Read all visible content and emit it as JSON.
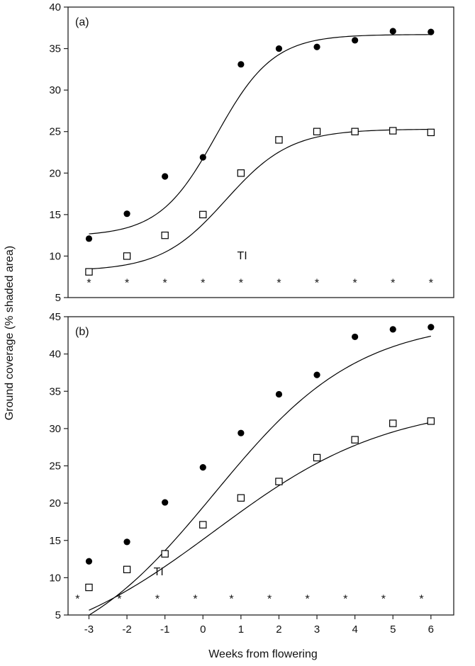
{
  "figure": {
    "ylabel": "Ground coverage (% shaded area)",
    "xlabel": "Weeks from flowering",
    "x_ticks": [
      "-3",
      "-2",
      "-1",
      "0",
      "1",
      "2",
      "3",
      "4",
      "5",
      "6"
    ]
  },
  "chart_data": [
    {
      "type": "scatter",
      "panel_label": "(a)",
      "x": [
        -3,
        -2,
        -1,
        0,
        1,
        2,
        3,
        4,
        5,
        6
      ],
      "xlim": [
        -3.55,
        6.6
      ],
      "ylim": [
        5,
        40
      ],
      "y_ticks": [
        5,
        10,
        15,
        20,
        25,
        30,
        35,
        40
      ],
      "series": [
        {
          "marker": "filled-circle",
          "color": "#000000",
          "values": [
            12.1,
            15.1,
            19.6,
            21.9,
            33.1,
            35.0,
            35.2,
            36.0,
            37.1,
            37.0
          ],
          "fit": {
            "kind": "logistic",
            "lower": 12.4,
            "upper": 36.7,
            "mid": 0.35,
            "scale": 0.75
          }
        },
        {
          "marker": "open-square",
          "color": "#000000",
          "values": [
            8.1,
            10.0,
            12.5,
            15.0,
            20.0,
            24.0,
            25.0,
            25.0,
            25.1,
            24.9
          ],
          "fit": {
            "kind": "logistic",
            "lower": 8.2,
            "upper": 25.3,
            "mid": 0.6,
            "scale": 0.85
          }
        }
      ],
      "annotations": [
        {
          "text": "TI",
          "x": 0.9,
          "y": 9.6
        }
      ],
      "stars": [
        -3,
        -2,
        -1,
        0,
        1,
        2,
        3,
        4,
        5,
        6
      ],
      "star_y": 7.0
    },
    {
      "type": "scatter",
      "panel_label": "(b)",
      "x": [
        -3,
        -2,
        -1,
        0,
        1,
        2,
        3,
        4,
        5,
        6
      ],
      "xlim": [
        -3.55,
        6.6
      ],
      "ylim": [
        5,
        45
      ],
      "y_ticks": [
        5,
        10,
        15,
        20,
        25,
        30,
        35,
        40,
        45
      ],
      "series": [
        {
          "marker": "filled-circle",
          "color": "#000000",
          "values": [
            12.2,
            14.8,
            20.1,
            24.8,
            29.4,
            34.6,
            37.2,
            42.3,
            43.3,
            43.6
          ],
          "fit": {
            "kind": "logistic",
            "lower": -2.0,
            "upper": 44.6,
            "mid": 0.3,
            "scale": 1.9
          }
        },
        {
          "marker": "open-square",
          "color": "#000000",
          "values": [
            8.7,
            11.1,
            13.2,
            17.1,
            20.7,
            22.9,
            26.1,
            28.5,
            30.7,
            31.0
          ],
          "fit": {
            "kind": "logistic",
            "lower": -1.0,
            "upper": 33.5,
            "mid": 0.3,
            "scale": 2.3
          }
        }
      ],
      "annotations": [
        {
          "text": "TI",
          "x": -1.3,
          "y": 10.3
        }
      ],
      "stars": [
        -3.3,
        -2.2,
        -1.2,
        -0.2,
        0.75,
        1.75,
        2.75,
        3.75,
        4.75,
        5.75
      ],
      "star_y": 7.4
    }
  ]
}
